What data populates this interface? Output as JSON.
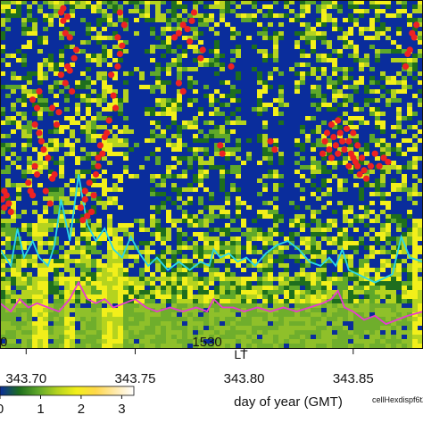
{
  "chart_data": {
    "type": "heatmap",
    "xlabel": "day of year (GMT)",
    "lt_axis_label": "LT",
    "x_ticks": [
      "343.70",
      "343.75",
      "343.80",
      "343.85"
    ],
    "x_tick_values": [
      343.7,
      343.75,
      343.8,
      343.85
    ],
    "xlim": [
      343.688,
      343.882
    ],
    "lt_ticks": [
      "1530"
    ],
    "lt_tick_values": [
      343.783
    ],
    "lt_extra_tick_value": 343.692,
    "lt_extra_tick_label": "0",
    "colorbar": {
      "ticks": [
        "0",
        "1",
        "2",
        "3"
      ],
      "tick_values": [
        0,
        1,
        2,
        3
      ],
      "range": [
        0,
        3.3
      ],
      "colors": [
        "#0a2d9c",
        "#1e6e1e",
        "#5fa82a",
        "#b5d31f",
        "#f2ef1a",
        "#ffd84a",
        "#ffe9a8",
        "#ffffff"
      ]
    },
    "file_tag": "cellHexdispf6t2h",
    "series": [
      {
        "color": "#29d9e8",
        "x": [
          343.688,
          343.693,
          343.696,
          343.699,
          343.701,
          343.703,
          343.706,
          343.71,
          343.713,
          343.716,
          343.72,
          343.724,
          343.728,
          343.732,
          343.736,
          343.74,
          343.744,
          343.748,
          343.752,
          343.756,
          343.76,
          343.765,
          343.77,
          343.775,
          343.78,
          343.784,
          343.786,
          343.789,
          343.793,
          343.797,
          343.801,
          343.805,
          343.81,
          343.815,
          343.82,
          343.825,
          343.83,
          343.835,
          343.839,
          343.842,
          343.845,
          343.848,
          343.852,
          343.856,
          343.86,
          343.864,
          343.868,
          343.872,
          343.876,
          343.882
        ],
        "y": [
          1.2,
          1.0,
          1.45,
          1.1,
          1.2,
          1.3,
          1.1,
          1.0,
          1.25,
          1.8,
          1.3,
          2.1,
          1.5,
          1.3,
          1.45,
          1.2,
          1.1,
          1.35,
          1.15,
          1.0,
          1.1,
          0.95,
          1.05,
          0.95,
          1.05,
          1.0,
          1.2,
          1.1,
          1.15,
          1.05,
          1.1,
          1.0,
          1.15,
          1.25,
          1.3,
          1.2,
          1.05,
          1.0,
          1.1,
          1.0,
          1.2,
          0.95,
          0.9,
          0.85,
          0.8,
          0.85,
          0.9,
          1.35,
          1.1,
          1.05
        ]
      },
      {
        "color": "#e83ad2",
        "x": [
          343.688,
          343.693,
          343.697,
          343.701,
          343.705,
          343.71,
          343.715,
          343.72,
          343.724,
          343.728,
          343.732,
          343.736,
          343.74,
          343.745,
          343.75,
          343.755,
          343.76,
          343.766,
          343.772,
          343.778,
          343.783,
          343.786,
          343.79,
          343.795,
          343.8,
          343.806,
          343.812,
          343.818,
          343.824,
          343.83,
          343.836,
          343.84,
          343.843,
          343.846,
          343.85,
          343.855,
          343.86,
          343.865,
          343.87,
          343.875,
          343.882
        ],
        "y": [
          0.55,
          0.45,
          0.6,
          0.5,
          0.55,
          0.5,
          0.45,
          0.6,
          0.8,
          0.6,
          0.55,
          0.6,
          0.5,
          0.55,
          0.6,
          0.5,
          0.45,
          0.5,
          0.45,
          0.5,
          0.45,
          0.6,
          0.5,
          0.5,
          0.45,
          0.5,
          0.45,
          0.5,
          0.45,
          0.5,
          0.55,
          0.6,
          0.7,
          0.5,
          0.45,
          0.35,
          0.4,
          0.3,
          0.35,
          0.4,
          0.45
        ]
      }
    ],
    "y_line_range": [
      0,
      4.2
    ],
    "red_markers": {
      "color": "#ee2222",
      "x": [
        343.689,
        343.69,
        343.691,
        343.692,
        343.69,
        343.693,
        343.701,
        343.702,
        343.703,
        343.704,
        343.705,
        343.706,
        343.707,
        343.704,
        343.705,
        343.703,
        343.706,
        343.708,
        343.711,
        343.712,
        343.713,
        343.71,
        343.709,
        343.712,
        343.714,
        343.715,
        343.716,
        343.718,
        343.719,
        343.72,
        343.722,
        343.723,
        343.721,
        343.72,
        343.718,
        343.717,
        343.716,
        343.717,
        343.719,
        343.725,
        343.726,
        343.727,
        343.728,
        343.727,
        343.729,
        343.73,
        343.731,
        343.732,
        343.733,
        343.734,
        343.735,
        343.736,
        343.733,
        343.737,
        343.738,
        343.74,
        343.741,
        343.739,
        343.742,
        343.743,
        343.742,
        343.744,
        343.745,
        343.743,
        343.768,
        343.77,
        343.772,
        343.774,
        343.775,
        343.776,
        343.777,
        343.77,
        343.772,
        343.78,
        343.781,
        343.789,
        343.79,
        343.794,
        343.812,
        343.814,
        343.836,
        343.837,
        343.838,
        343.839,
        343.84,
        343.841,
        343.842,
        343.843,
        343.844,
        343.845,
        343.846,
        343.847,
        343.848,
        343.849,
        343.85,
        343.851,
        343.852,
        343.853,
        343.854,
        343.855,
        343.856,
        343.858,
        343.84,
        343.843,
        343.848,
        343.85,
        343.852,
        343.86,
        343.862,
        343.864,
        343.866,
        343.874,
        343.876,
        343.877,
        343.878,
        343.879,
        343.875
      ],
      "y": [
        1.8,
        1.7,
        1.85,
        1.75,
        1.9,
        1.65,
        2.0,
        1.9,
        1.85,
        2.2,
        2.1,
        2.6,
        2.5,
        2.7,
        2.9,
        3.0,
        3.1,
        2.4,
        1.75,
        2.05,
        2.1,
        2.3,
        1.9,
        2.9,
        2.7,
        2.85,
        3.3,
        3.2,
        3.4,
        3.35,
        3.5,
        3.6,
        3.1,
        3.75,
        3.8,
        3.95,
        4.05,
        4.1,
        4.0,
        1.7,
        1.55,
        1.8,
        1.6,
        1.9,
        2.0,
        1.65,
        1.85,
        2.1,
        2.3,
        2.45,
        2.35,
        2.55,
        2.2,
        2.6,
        2.75,
        3.05,
        2.9,
        3.3,
        3.4,
        3.55,
        3.75,
        3.65,
        3.9,
        4.05,
        3.75,
        3.8,
        3.9,
        3.85,
        3.7,
        3.95,
        4.05,
        3.2,
        3.1,
        3.5,
        3.6,
        2.45,
        2.35,
        3.4,
        2.5,
        2.4,
        2.35,
        2.5,
        2.6,
        2.4,
        2.3,
        2.55,
        2.45,
        2.35,
        2.6,
        2.5,
        2.4,
        2.65,
        2.2,
        2.35,
        2.3,
        2.25,
        2.2,
        2.1,
        2.3,
        2.15,
        2.05,
        2.2,
        2.7,
        2.75,
        2.5,
        2.6,
        2.45,
        2.35,
        2.2,
        2.3,
        2.25,
        3.4,
        3.6,
        3.8,
        3.75,
        3.9,
        3.55
      ]
    }
  }
}
